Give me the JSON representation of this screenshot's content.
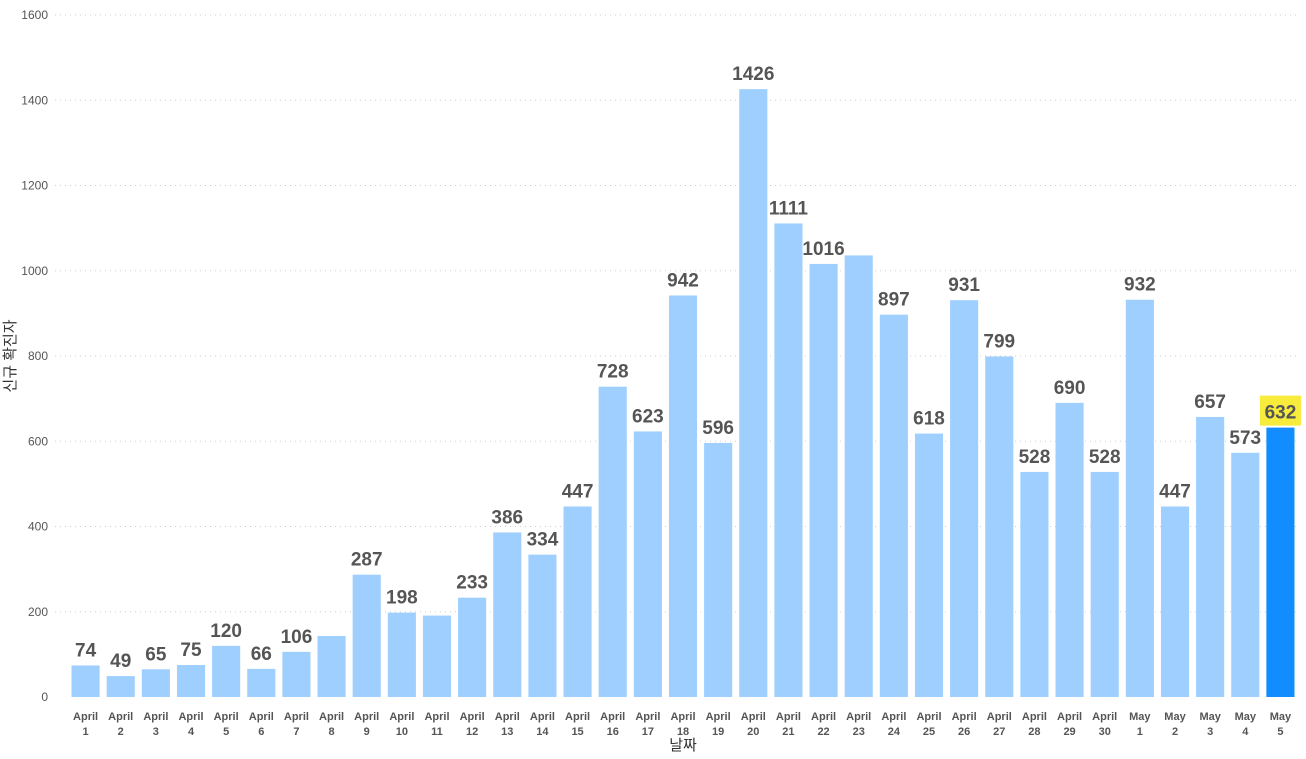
{
  "chart_data": {
    "type": "bar",
    "xlabel": "날짜",
    "ylabel": "신규 확진자",
    "ylim": [
      0,
      1600
    ],
    "yticks": [
      0,
      200,
      400,
      600,
      800,
      1000,
      1200,
      1400,
      1600
    ],
    "grid": true,
    "colors": {
      "bar": "#9ecfff",
      "highlight_bar": "#118dff",
      "highlight_label_bg": "#f7eb3c"
    },
    "highlight_index": 34,
    "categories": [
      [
        "April",
        "1"
      ],
      [
        "April",
        "2"
      ],
      [
        "April",
        "3"
      ],
      [
        "April",
        "4"
      ],
      [
        "April",
        "5"
      ],
      [
        "April",
        "6"
      ],
      [
        "April",
        "7"
      ],
      [
        "April",
        "8"
      ],
      [
        "April",
        "9"
      ],
      [
        "April",
        "10"
      ],
      [
        "April",
        "11"
      ],
      [
        "April",
        "12"
      ],
      [
        "April",
        "13"
      ],
      [
        "April",
        "14"
      ],
      [
        "April",
        "15"
      ],
      [
        "April",
        "16"
      ],
      [
        "April",
        "17"
      ],
      [
        "April",
        "18"
      ],
      [
        "April",
        "19"
      ],
      [
        "April",
        "20"
      ],
      [
        "April",
        "21"
      ],
      [
        "April",
        "22"
      ],
      [
        "April",
        "23"
      ],
      [
        "April",
        "24"
      ],
      [
        "April",
        "25"
      ],
      [
        "April",
        "26"
      ],
      [
        "April",
        "27"
      ],
      [
        "April",
        "28"
      ],
      [
        "April",
        "29"
      ],
      [
        "April",
        "30"
      ],
      [
        "May",
        "1"
      ],
      [
        "May",
        "2"
      ],
      [
        "May",
        "3"
      ],
      [
        "May",
        "4"
      ],
      [
        "May",
        "5"
      ]
    ],
    "values": [
      74,
      49,
      65,
      75,
      120,
      66,
      106,
      143,
      287,
      198,
      191,
      233,
      386,
      334,
      447,
      728,
      623,
      942,
      596,
      1426,
      1111,
      1016,
      1036,
      897,
      618,
      931,
      799,
      528,
      690,
      528,
      932,
      447,
      657,
      573,
      632
    ],
    "data_labels": [
      "74",
      "49",
      "65",
      "75",
      "120",
      "66",
      "106",
      null,
      "287",
      "198",
      null,
      "233",
      "386",
      "334",
      "447",
      "728",
      "623",
      "942",
      "596",
      "1426",
      "1111",
      "1016",
      null,
      "897",
      "618",
      "931",
      "799",
      "528",
      "690",
      "528",
      "932",
      "447",
      "657",
      "573",
      "632"
    ]
  }
}
